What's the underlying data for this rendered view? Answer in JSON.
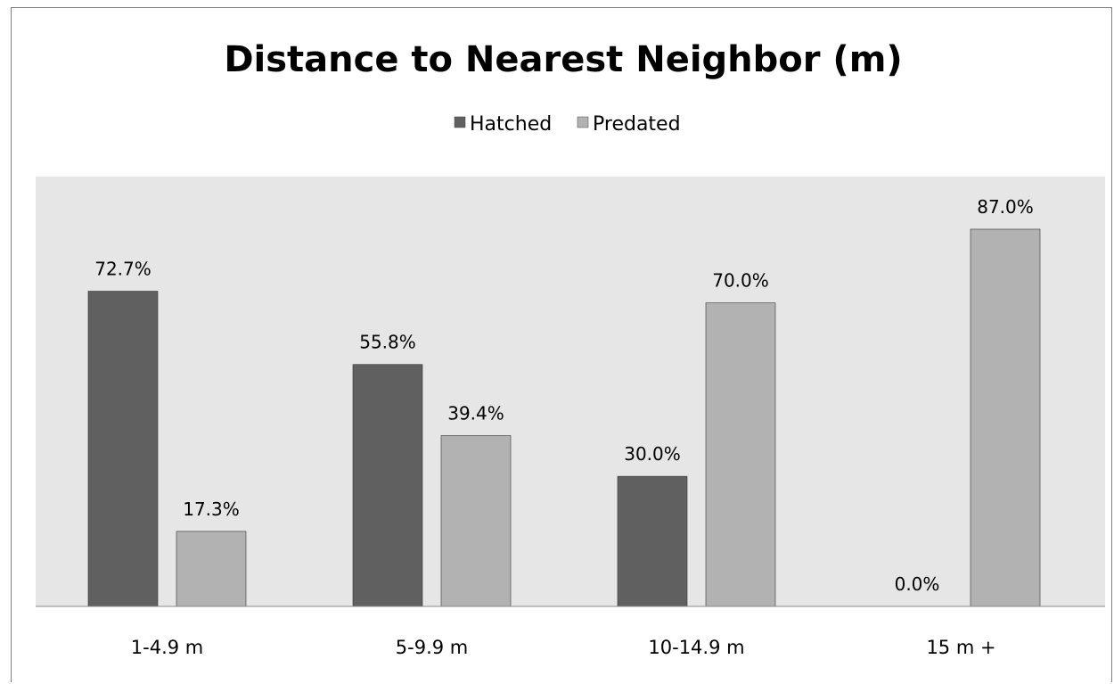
{
  "chart_data": {
    "type": "bar",
    "title": "Distance to Nearest Neighbor (m)",
    "xlabel": "",
    "ylabel": "",
    "categories": [
      "1-4.9 m",
      "5-9.9 m",
      "10-14.9 m",
      "15 m +"
    ],
    "series": [
      {
        "name": "Hatched",
        "values": [
          72.7,
          55.8,
          30.0,
          0.0
        ],
        "labels": [
          "72.7%",
          "55.8%",
          "30.0%",
          "0.0%"
        ],
        "color": "#606060"
      },
      {
        "name": "Predated",
        "values": [
          17.3,
          39.4,
          70.0,
          87.0
        ],
        "labels": [
          "17.3%",
          "39.4%",
          "70.0%",
          "87.0%"
        ],
        "color": "#b2b2b2"
      }
    ],
    "ylim": [
      0,
      100
    ],
    "grid": false,
    "legend": "top",
    "plot_background": "#e6e6e6"
  }
}
